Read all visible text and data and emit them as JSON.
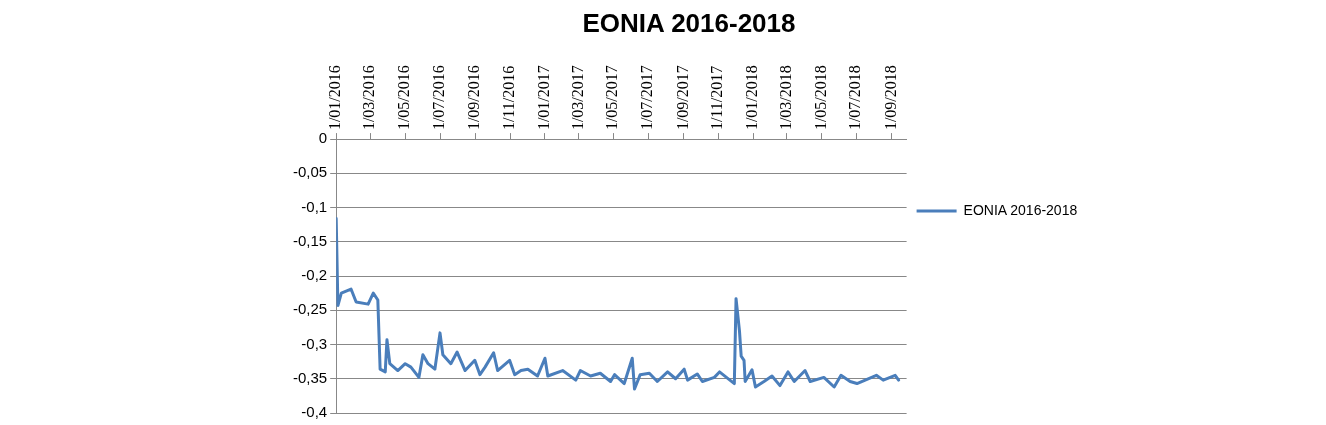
{
  "chart_data": {
    "type": "line",
    "title": "EONIA 2016-2018",
    "xlim": [
      "2016-01-01",
      "2018-09-27"
    ],
    "xticks": [
      {
        "value": "2016-01-01",
        "label": "1/01/2016"
      },
      {
        "value": "2016-03-01",
        "label": "1/03/2016"
      },
      {
        "value": "2016-05-01",
        "label": "1/05/2016"
      },
      {
        "value": "2016-07-01",
        "label": "1/07/2016"
      },
      {
        "value": "2016-09-01",
        "label": "1/09/2016"
      },
      {
        "value": "2016-11-01",
        "label": "1/11/2016"
      },
      {
        "value": "2017-01-01",
        "label": "1/01/2017"
      },
      {
        "value": "2017-03-01",
        "label": "1/03/2017"
      },
      {
        "value": "2017-05-01",
        "label": "1/05/2017"
      },
      {
        "value": "2017-07-01",
        "label": "1/07/2017"
      },
      {
        "value": "2017-09-01",
        "label": "1/09/2017"
      },
      {
        "value": "2017-11-01",
        "label": "1/11/2017"
      },
      {
        "value": "2018-01-01",
        "label": "1/01/2018"
      },
      {
        "value": "2018-03-01",
        "label": "1/03/2018"
      },
      {
        "value": "2018-05-01",
        "label": "1/05/2018"
      },
      {
        "value": "2018-07-01",
        "label": "1/07/2018"
      },
      {
        "value": "2018-09-01",
        "label": "1/09/2018"
      }
    ],
    "ylim": [
      -0.4,
      0
    ],
    "yticks": [
      {
        "value": 0,
        "label": "0"
      },
      {
        "value": -0.05,
        "label": "-0,05"
      },
      {
        "value": -0.1,
        "label": "-0,1"
      },
      {
        "value": -0.15,
        "label": "-0,15"
      },
      {
        "value": -0.2,
        "label": "-0,2"
      },
      {
        "value": -0.25,
        "label": "-0,25"
      },
      {
        "value": -0.3,
        "label": "-0,3"
      },
      {
        "value": -0.35,
        "label": "-0,35"
      },
      {
        "value": -0.4,
        "label": "-0,4"
      }
    ],
    "grid": "y",
    "legend": "right",
    "marker": "none",
    "line_style": "solid",
    "series": [
      {
        "name": "EONIA 2016-2018",
        "color": "#4a7ebb",
        "x": [
          "2016-01-01",
          "2016-01-04",
          "2016-01-10",
          "2016-01-27",
          "2016-02-05",
          "2016-02-26",
          "2016-03-06",
          "2016-03-14",
          "2016-03-18",
          "2016-03-27",
          "2016-03-30",
          "2016-04-04",
          "2016-04-18",
          "2016-05-01",
          "2016-05-11",
          "2016-05-25",
          "2016-06-01",
          "2016-06-10",
          "2016-06-22",
          "2016-07-01",
          "2016-07-06",
          "2016-07-20",
          "2016-07-31",
          "2016-08-14",
          "2016-08-31",
          "2016-09-09",
          "2016-09-18",
          "2016-10-03",
          "2016-10-10",
          "2016-10-31",
          "2016-11-09",
          "2016-11-20",
          "2016-12-02",
          "2016-12-19",
          "2017-01-01",
          "2017-01-06",
          "2017-02-01",
          "2017-02-24",
          "2017-03-04",
          "2017-03-22",
          "2017-04-08",
          "2017-04-26",
          "2017-05-03",
          "2017-05-20",
          "2017-06-03",
          "2017-06-07",
          "2017-06-17",
          "2017-07-03",
          "2017-07-17",
          "2017-08-04",
          "2017-08-18",
          "2017-09-02",
          "2017-09-08",
          "2017-09-25",
          "2017-10-04",
          "2017-10-25",
          "2017-11-03",
          "2017-11-29",
          "2017-12-02",
          "2017-12-08",
          "2017-12-11",
          "2017-12-16",
          "2017-12-18",
          "2017-12-30",
          "2018-01-05",
          "2018-01-20",
          "2018-02-03",
          "2018-02-17",
          "2018-03-03",
          "2018-03-14",
          "2018-04-02",
          "2018-04-11",
          "2018-05-05",
          "2018-05-23",
          "2018-06-04",
          "2018-06-20",
          "2018-07-02",
          "2018-08-05",
          "2018-08-17",
          "2018-09-07",
          "2018-09-13"
        ],
        "values": [
          -0.116,
          -0.243,
          -0.225,
          -0.219,
          -0.238,
          -0.241,
          -0.225,
          -0.235,
          -0.336,
          -0.34,
          -0.293,
          -0.328,
          -0.338,
          -0.328,
          -0.333,
          -0.348,
          -0.315,
          -0.328,
          -0.336,
          -0.283,
          -0.315,
          -0.328,
          -0.311,
          -0.338,
          -0.323,
          -0.344,
          -0.333,
          -0.312,
          -0.338,
          -0.323,
          -0.344,
          -0.338,
          -0.336,
          -0.346,
          -0.32,
          -0.346,
          -0.338,
          -0.352,
          -0.338,
          -0.346,
          -0.342,
          -0.354,
          -0.344,
          -0.357,
          -0.32,
          -0.365,
          -0.344,
          -0.342,
          -0.354,
          -0.34,
          -0.35,
          -0.336,
          -0.352,
          -0.343,
          -0.354,
          -0.348,
          -0.34,
          -0.357,
          -0.233,
          -0.28,
          -0.317,
          -0.323,
          -0.354,
          -0.337,
          -0.362,
          -0.354,
          -0.346,
          -0.36,
          -0.34,
          -0.354,
          -0.338,
          -0.354,
          -0.348,
          -0.362,
          -0.345,
          -0.354,
          -0.357,
          -0.345,
          -0.352,
          -0.345,
          -0.352
        ]
      }
    ]
  }
}
